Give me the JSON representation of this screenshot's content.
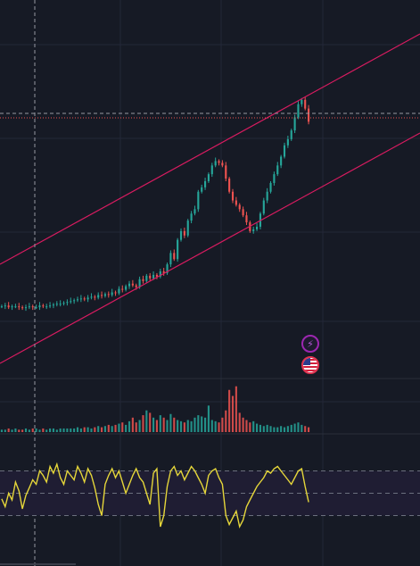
{
  "theme": {
    "background": "#161a25",
    "grid": "#232838",
    "up_color": "#26a69a",
    "down_color": "#ef5350",
    "channel_color": "#d81b60",
    "rsi_color": "#e5d63a",
    "rsi_band_fill": "#1f1d33",
    "crosshair_color": "#9598a1"
  },
  "events": [
    {
      "name": "flash-icon",
      "glyph": "⚡"
    },
    {
      "name": "us-flag-icon",
      "glyph": ""
    }
  ],
  "chart_data": [
    {
      "type": "candlestick",
      "pane": "price",
      "series": [
        {
          "name": "price",
          "values": [
            64,
            65,
            63,
            64,
            64,
            63,
            62,
            63,
            64,
            63,
            63,
            65,
            64,
            64,
            65,
            66,
            67,
            67,
            68,
            69,
            70,
            71,
            72,
            73,
            72,
            74,
            75,
            74,
            77,
            76,
            78,
            77,
            80,
            79,
            84,
            83,
            87,
            90,
            88,
            86,
            95,
            93,
            99,
            96,
            100,
            98,
            104,
            102,
            112,
            125,
            118,
            140,
            150,
            145,
            162,
            170,
            175,
            195,
            200,
            207,
            215,
            225,
            230,
            228,
            225,
            210,
            195,
            185,
            180,
            175,
            168,
            160,
            150,
            152,
            155,
            170,
            185,
            195,
            205,
            215,
            225,
            235,
            248,
            255,
            265,
            280,
            295,
            300,
            290,
            275
          ]
        }
      ],
      "channel": {
        "upper": true,
        "lower": true
      },
      "grid": true
    },
    {
      "type": "bar",
      "pane": "volume",
      "series": [
        {
          "name": "volume",
          "values": [
            2,
            2,
            3,
            2,
            3,
            2,
            2,
            3,
            2,
            3,
            3,
            2,
            3,
            2,
            3,
            3,
            2,
            3,
            3,
            3,
            3,
            3,
            4,
            3,
            4,
            4,
            3,
            4,
            5,
            4,
            5,
            6,
            5,
            6,
            7,
            8,
            6,
            9,
            12,
            8,
            10,
            14,
            18,
            16,
            12,
            10,
            14,
            12,
            10,
            15,
            12,
            10,
            9,
            8,
            10,
            9,
            12,
            14,
            13,
            12,
            22,
            10,
            9,
            8,
            12,
            18,
            35,
            30,
            38,
            16,
            12,
            10,
            8,
            9,
            7,
            6,
            5,
            6,
            5,
            4,
            4,
            5,
            4,
            5,
            6,
            7,
            8,
            6,
            5,
            4
          ]
        }
      ]
    },
    {
      "type": "line",
      "pane": "rsi",
      "series": [
        {
          "name": "rsi",
          "values": [
            45,
            38,
            50,
            44,
            60,
            52,
            36,
            48,
            55,
            62,
            58,
            70,
            66,
            60,
            74,
            68,
            76,
            64,
            58,
            70,
            66,
            62,
            74,
            68,
            60,
            72,
            66,
            55,
            40,
            30,
            58,
            66,
            72,
            64,
            70,
            60,
            50,
            58,
            66,
            72,
            64,
            60,
            50,
            40,
            68,
            72,
            20,
            30,
            56,
            70,
            74,
            66,
            70,
            62,
            68,
            74,
            70,
            64,
            58,
            50,
            66,
            70,
            72,
            64,
            58,
            30,
            22,
            28,
            34,
            20,
            26,
            38,
            44,
            50,
            56,
            60,
            64,
            70,
            68,
            72,
            74,
            70,
            66,
            62,
            58,
            64,
            70,
            72,
            56,
            42
          ]
        }
      ],
      "ylim": [
        0,
        100
      ],
      "bands": [
        30,
        50,
        70
      ]
    }
  ]
}
